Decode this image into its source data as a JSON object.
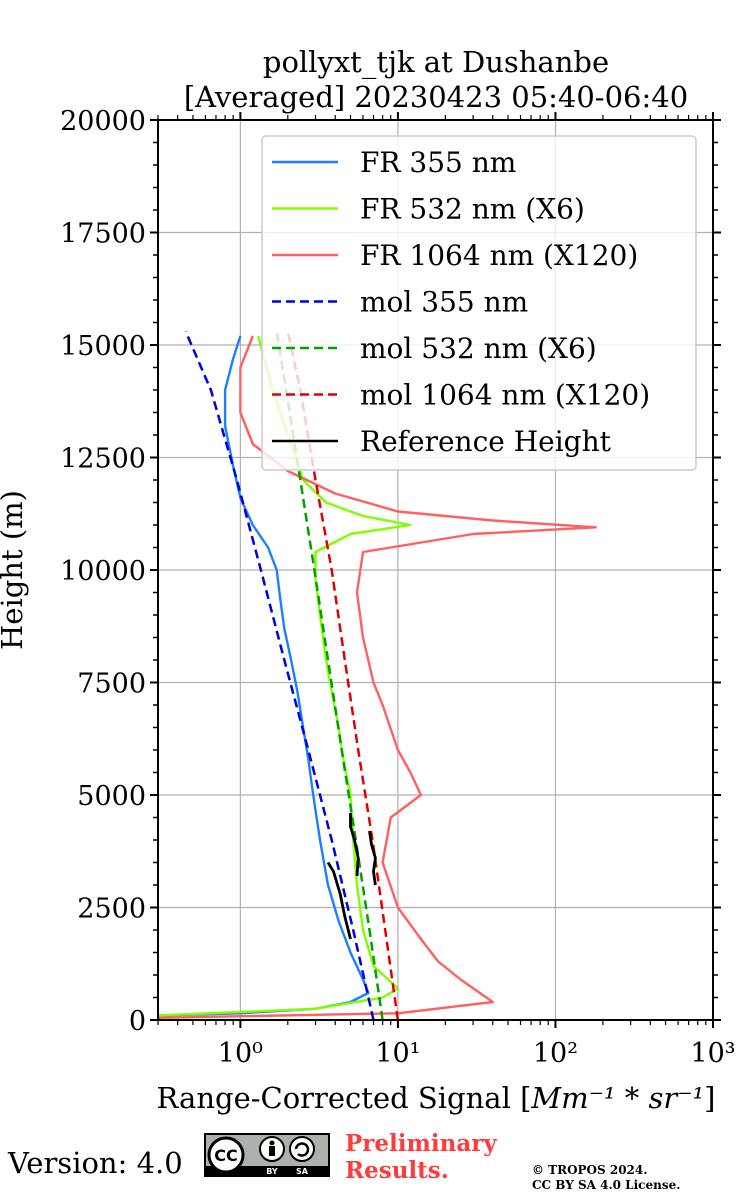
{
  "chart_data": {
    "type": "line",
    "title": "pollyxt_tjk at Dushanbe",
    "subtitle": "[Averaged] 20230423 05:40-06:40",
    "xlabel_text": "Range-Corrected Signal [",
    "xlabel_math": "Mm⁻¹ * sr⁻¹",
    "xlabel_end": "]",
    "ylabel": "Height (m)",
    "x_scale": "log",
    "xlim": [
      0.3,
      1000
    ],
    "ylim": [
      0,
      20000
    ],
    "x_ticks": [
      {
        "value": 1,
        "label": "10⁰"
      },
      {
        "value": 10,
        "label": "10¹"
      },
      {
        "value": 100,
        "label": "10²"
      },
      {
        "value": 1000,
        "label": "10³"
      }
    ],
    "y_ticks": [
      0,
      2500,
      5000,
      7500,
      10000,
      12500,
      15000,
      17500,
      20000
    ],
    "grid": true,
    "legend_position": "top-right",
    "series": [
      {
        "name": "FR 355 nm",
        "color": "#1a80ff",
        "style": "solid",
        "points": [
          [
            0.3,
            100
          ],
          [
            1,
            150
          ],
          [
            3,
            250
          ],
          [
            5,
            400
          ],
          [
            6.5,
            600
          ],
          [
            6,
            900
          ],
          [
            5,
            1500
          ],
          [
            4.2,
            2200
          ],
          [
            3.6,
            3000
          ],
          [
            3.2,
            4000
          ],
          [
            2.9,
            5000
          ],
          [
            2.7,
            5800
          ],
          [
            2.5,
            6500
          ],
          [
            2.3,
            7300
          ],
          [
            2.1,
            8000
          ],
          [
            1.9,
            8700
          ],
          [
            1.8,
            9300
          ],
          [
            1.7,
            10000
          ],
          [
            1.5,
            10500
          ],
          [
            1.2,
            11000
          ],
          [
            1.0,
            11600
          ],
          [
            0.9,
            12300
          ],
          [
            0.8,
            13200
          ],
          [
            0.8,
            14000
          ],
          [
            0.9,
            14700
          ],
          [
            1.0,
            15200
          ]
        ]
      },
      {
        "name": "FR 532 nm (X6)",
        "color": "#80ff00",
        "style": "solid",
        "points": [
          [
            0.3,
            100
          ],
          [
            3,
            250
          ],
          [
            8,
            500
          ],
          [
            10,
            700
          ],
          [
            7,
            1200
          ],
          [
            6,
            2000
          ],
          [
            5.5,
            3000
          ],
          [
            5.2,
            4000
          ],
          [
            5,
            5000
          ],
          [
            4.5,
            5800
          ],
          [
            4.2,
            6500
          ],
          [
            3.8,
            7300
          ],
          [
            3.5,
            8000
          ],
          [
            3.2,
            9000
          ],
          [
            3,
            9800
          ],
          [
            3,
            10400
          ],
          [
            5,
            10800
          ],
          [
            12,
            11000
          ],
          [
            6,
            11200
          ],
          [
            3.5,
            11500
          ],
          [
            2.5,
            12000
          ],
          [
            2,
            13000
          ],
          [
            1.6,
            14000
          ],
          [
            1.3,
            15200
          ]
        ]
      },
      {
        "name": "FR 1064 nm (X120)",
        "color": "#ff6060",
        "style": "solid",
        "points": [
          [
            0.3,
            50
          ],
          [
            10,
            150
          ],
          [
            40,
            400
          ],
          [
            25,
            900
          ],
          [
            18,
            1300
          ],
          [
            14,
            1800
          ],
          [
            10,
            2500
          ],
          [
            8,
            3500
          ],
          [
            9,
            4500
          ],
          [
            14,
            5000
          ],
          [
            12,
            5500
          ],
          [
            10,
            6000
          ],
          [
            8,
            7000
          ],
          [
            7,
            7500
          ],
          [
            6,
            8500
          ],
          [
            5.5,
            9500
          ],
          [
            6,
            10400
          ],
          [
            30,
            10800
          ],
          [
            180,
            10950
          ],
          [
            40,
            11100
          ],
          [
            10,
            11300
          ],
          [
            4,
            11700
          ],
          [
            2,
            12200
          ],
          [
            1.2,
            12800
          ],
          [
            1,
            13500
          ],
          [
            1,
            14500
          ],
          [
            1.2,
            15200
          ]
        ]
      },
      {
        "name": "mol 355 nm",
        "color": "#0000e0",
        "style": "dashed",
        "points": [
          [
            7,
            0
          ],
          [
            5.2,
            2000
          ],
          [
            3.8,
            4000
          ],
          [
            2.7,
            6000
          ],
          [
            1.9,
            8000
          ],
          [
            1.35,
            10000
          ],
          [
            0.95,
            12000
          ],
          [
            0.65,
            14000
          ],
          [
            0.45,
            15300
          ]
        ]
      },
      {
        "name": "mol 532 nm (X6)",
        "color": "#00a000",
        "style": "dashed",
        "points": [
          [
            8,
            0
          ],
          [
            6.6,
            2000
          ],
          [
            5.4,
            4000
          ],
          [
            4.4,
            6000
          ],
          [
            3.6,
            8000
          ],
          [
            2.95,
            10000
          ],
          [
            2.4,
            12000
          ],
          [
            1.95,
            14000
          ],
          [
            1.7,
            15300
          ]
        ]
      },
      {
        "name": "mol 1064 nm (X120)",
        "color": "#e00000",
        "style": "dashed",
        "points": [
          [
            10,
            0
          ],
          [
            8.3,
            2000
          ],
          [
            6.9,
            4000
          ],
          [
            5.6,
            6000
          ],
          [
            4.6,
            8000
          ],
          [
            3.8,
            10000
          ],
          [
            3.0,
            12000
          ],
          [
            2.4,
            14000
          ],
          [
            2.0,
            15300
          ]
        ]
      },
      {
        "name": "Reference Height",
        "color": "#000000",
        "style": "solid",
        "segments": [
          [
            [
              5.0,
              1800
            ],
            [
              4.6,
              2300
            ],
            [
              4.3,
              2800
            ],
            [
              3.9,
              3300
            ],
            [
              3.6,
              3500
            ]
          ],
          [
            [
              5.5,
              3200
            ],
            [
              5.6,
              3600
            ],
            [
              5.3,
              4000
            ],
            [
              5.0,
              4300
            ],
            [
              5.0,
              4600
            ]
          ],
          [
            [
              7.2,
              3000
            ],
            [
              7.0,
              3300
            ],
            [
              7.2,
              3600
            ],
            [
              6.8,
              3900
            ],
            [
              6.6,
              4200
            ]
          ]
        ]
      }
    ]
  },
  "footer": {
    "version": "Version: 4.0",
    "license_badge": "cc-by-sa-icon",
    "cc_text": "CC",
    "by_text": "BY",
    "sa_text": "SA",
    "prelim_line1": "Preliminary",
    "prelim_line2": "Results.",
    "copyright_line1": "© TROPOS 2024.",
    "copyright_line2": "CC BY SA 4.0 License."
  }
}
